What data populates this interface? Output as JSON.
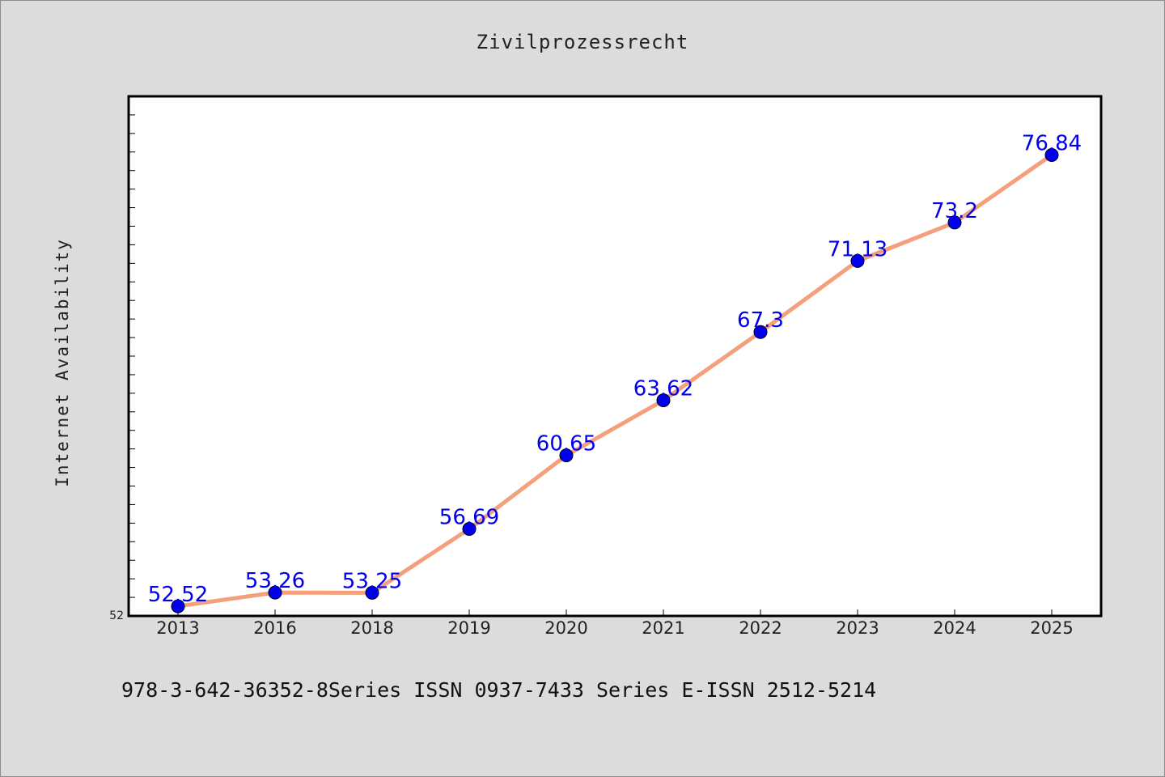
{
  "chart_data": {
    "type": "line",
    "title": "Zivilprozessrecht",
    "xlabel": "",
    "ylabel": "Internet Availability",
    "categories": [
      "2013",
      "2016",
      "2018",
      "2019",
      "2020",
      "2021",
      "2022",
      "2023",
      "2024",
      "2025"
    ],
    "series": [
      {
        "values": [
          52.52,
          53.26,
          53.25,
          56.69,
          60.65,
          63.62,
          67.3,
          71.13,
          73.2,
          76.84
        ],
        "labels": [
          "52.52",
          "53.26",
          "53.25",
          "56.69",
          "60.65",
          "63.62",
          "67.3",
          "71.13",
          "73.2",
          "76.84"
        ]
      }
    ],
    "ylim": [
      52,
      80
    ],
    "y_tick_labels": [
      "52"
    ],
    "grid": false,
    "legend": "none",
    "colors": {
      "line": "#f4a07c",
      "marker": "#0000ee",
      "data_label": "#0000ee",
      "background": "#dcdcdc",
      "plot_area": "#ffffff"
    }
  },
  "footer": "978-3-642-36352-8Series ISSN 0937-7433 Series E-ISSN 2512-5214"
}
